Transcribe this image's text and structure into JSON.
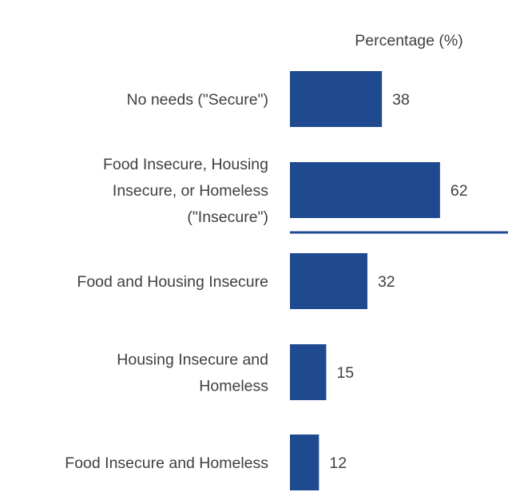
{
  "chart_data": {
    "type": "bar",
    "orientation": "horizontal",
    "header": "Percentage (%)",
    "categories": [
      [
        "No needs (\"Secure\")"
      ],
      [
        "Food Insecure, Housing",
        "Insecure, or Homeless",
        "(\"Insecure\")"
      ],
      [
        "Food and Housing Insecure"
      ],
      [
        "Housing Insecure and",
        "Homeless"
      ],
      [
        "Food Insecure and Homeless"
      ]
    ],
    "values": [
      38,
      62,
      32,
      15,
      12
    ],
    "separator_after_category_index": 1,
    "bar_color": "#1f4a8f",
    "separator_color": "#1f4a8f",
    "text_color": "#404040"
  }
}
